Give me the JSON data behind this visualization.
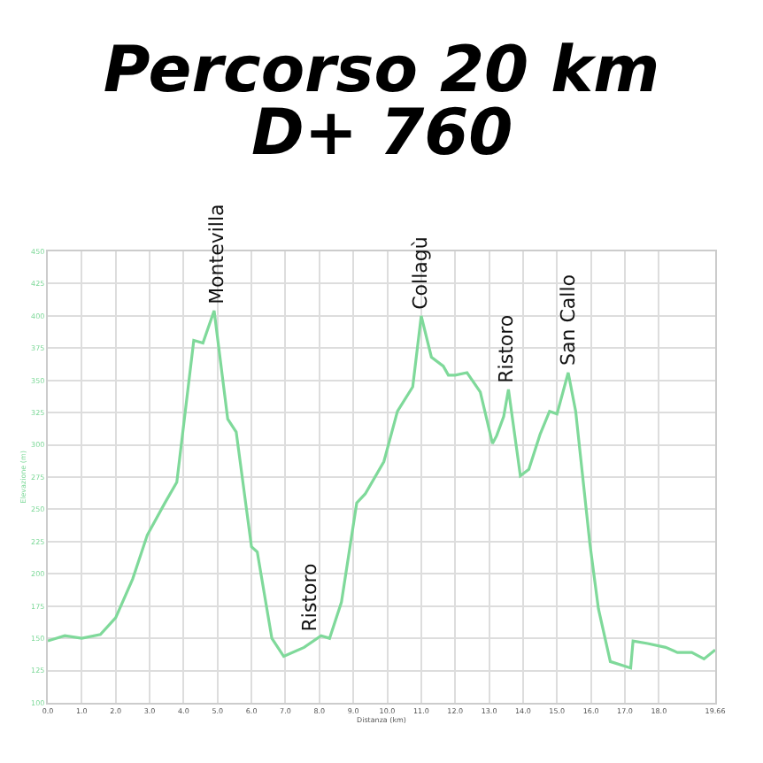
{
  "chart_data": {
    "type": "line",
    "title": "Percorso 20 km",
    "subtitle": "D+ 760",
    "xlabel": "Distanza (km)",
    "ylabel": "Elevazione (m)",
    "x": [
      0.0,
      0.5,
      1.0,
      1.55,
      2.0,
      2.5,
      2.93,
      3.45,
      3.8,
      4.3,
      4.57,
      4.9,
      5.3,
      5.55,
      6.0,
      6.17,
      6.6,
      6.95,
      7.55,
      8.05,
      8.3,
      8.65,
      9.1,
      9.35,
      9.9,
      10.3,
      10.75,
      11.0,
      11.3,
      11.65,
      11.8,
      12.0,
      12.35,
      12.74,
      13.1,
      13.22,
      13.43,
      13.57,
      13.92,
      14.17,
      14.5,
      14.78,
      15.0,
      15.33,
      15.55,
      15.97,
      16.22,
      16.57,
      17.17,
      17.24,
      17.67,
      18.2,
      18.55,
      18.97,
      19.33,
      19.66
    ],
    "series": [
      {
        "color": "#7fd99a",
        "values": [
          148,
          152,
          150,
          153,
          166,
          196,
          230,
          255,
          271,
          381,
          379,
          404,
          320,
          310,
          221,
          217,
          150,
          136,
          143,
          152,
          150,
          178,
          255,
          262,
          287,
          326,
          345,
          400,
          368,
          361,
          354,
          354,
          356,
          341,
          301,
          307,
          322,
          343,
          276,
          281,
          308,
          326,
          324,
          356,
          326,
          223,
          173,
          132,
          127,
          148,
          146,
          143,
          139,
          139,
          134,
          141
        ]
      }
    ],
    "xlim": [
      0,
      19.66
    ],
    "ylim": [
      100,
      450
    ],
    "xticks": [
      {
        "value": 0,
        "label": "0.0"
      },
      {
        "value": 1,
        "label": "1.0"
      },
      {
        "value": 2,
        "label": "2.0"
      },
      {
        "value": 3,
        "label": "3.0"
      },
      {
        "value": 4,
        "label": "4.0"
      },
      {
        "value": 5,
        "label": "5.0"
      },
      {
        "value": 6,
        "label": "6.0"
      },
      {
        "value": 7,
        "label": "7.0"
      },
      {
        "value": 8,
        "label": "8.0"
      },
      {
        "value": 9,
        "label": "9.0"
      },
      {
        "value": 10,
        "label": "10.0"
      },
      {
        "value": 11,
        "label": "11.0"
      },
      {
        "value": 12,
        "label": "12.0"
      },
      {
        "value": 13,
        "label": "13.0"
      },
      {
        "value": 14,
        "label": "14.0"
      },
      {
        "value": 15,
        "label": "15.0"
      },
      {
        "value": 16,
        "label": "16.0"
      },
      {
        "value": 17,
        "label": "17.0"
      },
      {
        "value": 18,
        "label": "18.0"
      },
      {
        "value": 19.66,
        "label": "19.66"
      }
    ],
    "yticks": [
      100,
      125,
      150,
      175,
      200,
      225,
      250,
      275,
      300,
      325,
      350,
      375,
      400,
      425,
      450
    ],
    "annotations": [
      {
        "text": "Montevilla",
        "x": 4.95,
        "y": 404
      },
      {
        "text": "Ristoro",
        "x": 7.7,
        "y": 150
      },
      {
        "text": "Collagù",
        "x": 11.0,
        "y": 400
      },
      {
        "text": "Ristoro",
        "x": 13.5,
        "y": 343
      },
      {
        "text": "San Callo",
        "x": 15.33,
        "y": 356
      }
    ],
    "grid": true,
    "marker": "none",
    "line_style": "solid"
  }
}
